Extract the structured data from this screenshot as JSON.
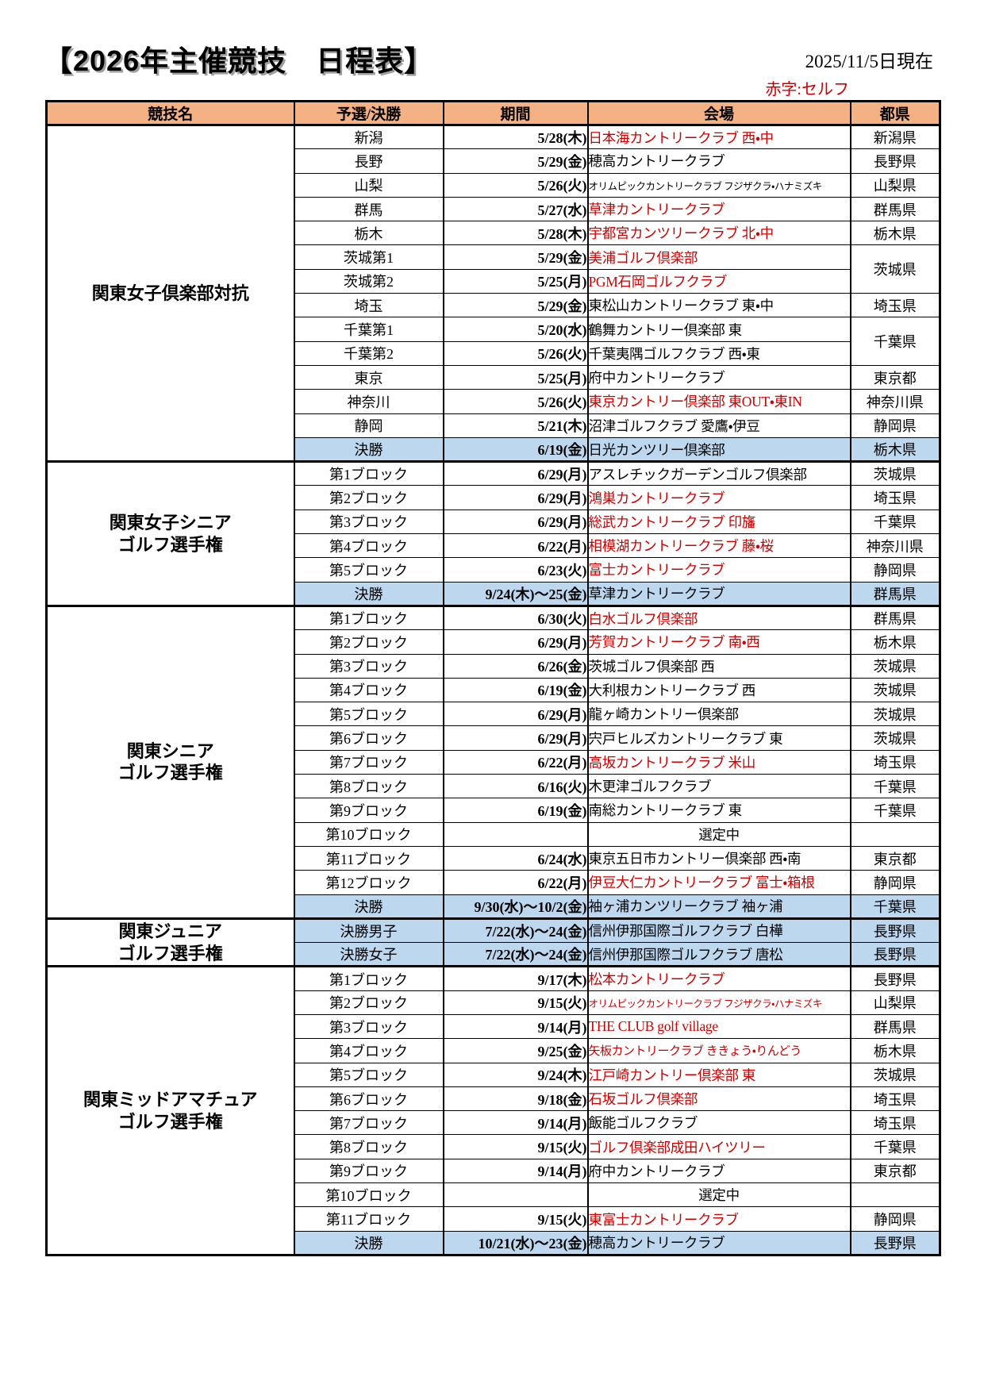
{
  "page": {
    "title": "【2026年主催競技　日程表】",
    "as_of": "2025/11/5日現在",
    "legend": "赤字:セルフ"
  },
  "colors": {
    "header_bg": "#F4B183",
    "final_row_bg": "#BDD7EE",
    "self_red_text": "#CC0000",
    "border": "#000000"
  },
  "table": {
    "headers": [
      "競技名",
      "予選/決勝",
      "期間",
      "会場",
      "都県"
    ],
    "sections": [
      {
        "name_lines": [
          "関東女子倶楽部対抗"
        ],
        "rows": [
          {
            "stage": "新潟",
            "date": "5/28(木)",
            "venue": "日本海カントリークラブ 西・中",
            "red": true,
            "pref": "新潟県"
          },
          {
            "stage": "長野",
            "date": "5/29(金)",
            "venue": "穂高カントリークラブ",
            "red": false,
            "pref": "長野県"
          },
          {
            "stage": "山梨",
            "date": "5/26(火)",
            "venue": "オリムピックカントリークラブ フジザクラ・ハナミズキ",
            "red": false,
            "size": "small",
            "pref": "山梨県"
          },
          {
            "stage": "群馬",
            "date": "5/27(水)",
            "venue": "草津カントリークラブ",
            "red": true,
            "pref": "群馬県"
          },
          {
            "stage": "栃木",
            "date": "5/28(木)",
            "venue": "宇都宮カンツリークラブ 北・中",
            "red": true,
            "pref": "栃木県"
          },
          {
            "stage": "茨城第1",
            "date": "5/29(金)",
            "venue": "美浦ゴルフ倶楽部",
            "red": true,
            "pref": "茨城県",
            "pref_span": 2
          },
          {
            "stage": "茨城第2",
            "date": "5/25(月)",
            "venue": "PGM石岡ゴルフクラブ",
            "red": true,
            "pref_span": 0
          },
          {
            "stage": "埼玉",
            "date": "5/29(金)",
            "venue": "東松山カントリークラブ 東・中",
            "red": false,
            "pref": "埼玉県"
          },
          {
            "stage": "千葉第1",
            "date": "5/20(水)",
            "venue": "鶴舞カントリー倶楽部 東",
            "red": false,
            "pref": "千葉県",
            "pref_span": 2
          },
          {
            "stage": "千葉第2",
            "date": "5/26(火)",
            "venue": "千葉夷隅ゴルフクラブ 西・東",
            "red": false,
            "pref_span": 0
          },
          {
            "stage": "東京",
            "date": "5/25(月)",
            "venue": "府中カントリークラブ",
            "red": false,
            "pref": "東京都"
          },
          {
            "stage": "神奈川",
            "date": "5/26(火)",
            "venue": "東京カントリー倶楽部 東OUT・東IN",
            "red": true,
            "pref": "神奈川県"
          },
          {
            "stage": "静岡",
            "date": "5/21(木)",
            "venue": "沼津ゴルフクラブ 愛鷹・伊豆",
            "red": false,
            "pref": "静岡県"
          },
          {
            "stage": "決勝",
            "date": "6/19(金)",
            "venue": "日光カンツリー倶楽部",
            "red": false,
            "final": true,
            "pref": "栃木県"
          }
        ]
      },
      {
        "name_lines": [
          "関東女子シニア",
          "ゴルフ選手権"
        ],
        "rows": [
          {
            "stage": "第1ブロック",
            "date": "6/29(月)",
            "venue": "アスレチックガーデンゴルフ倶楽部",
            "red": false,
            "pref": "茨城県"
          },
          {
            "stage": "第2ブロック",
            "date": "6/29(月)",
            "venue": "鴻巣カントリークラブ",
            "red": true,
            "pref": "埼玉県"
          },
          {
            "stage": "第3ブロック",
            "date": "6/29(月)",
            "venue": "総武カントリークラブ 印旛",
            "red": true,
            "pref": "千葉県"
          },
          {
            "stage": "第4ブロック",
            "date": "6/22(月)",
            "venue": "相模湖カントリークラブ 藤・桜",
            "red": true,
            "pref": "神奈川県"
          },
          {
            "stage": "第5ブロック",
            "date": "6/23(火)",
            "venue": "富士カントリークラブ",
            "red": true,
            "pref": "静岡県"
          },
          {
            "stage": "決勝",
            "date": "9/24(木)～25(金)",
            "venue": "草津カントリークラブ",
            "red": false,
            "final": true,
            "pref": "群馬県"
          }
        ]
      },
      {
        "name_lines": [
          "関東シニア",
          "ゴルフ選手権"
        ],
        "rows": [
          {
            "stage": "第1ブロック",
            "date": "6/30(火)",
            "venue": "白水ゴルフ倶楽部",
            "red": true,
            "pref": "群馬県"
          },
          {
            "stage": "第2ブロック",
            "date": "6/29(月)",
            "venue": "芳賀カントリークラブ 南・西",
            "red": true,
            "pref": "栃木県"
          },
          {
            "stage": "第3ブロック",
            "date": "6/26(金)",
            "venue": "茨城ゴルフ倶楽部 西",
            "red": false,
            "pref": "茨城県"
          },
          {
            "stage": "第4ブロック",
            "date": "6/19(金)",
            "venue": "大利根カントリークラブ 西",
            "red": false,
            "pref": "茨城県"
          },
          {
            "stage": "第5ブロック",
            "date": "6/29(月)",
            "venue": "龍ヶ崎カントリー倶楽部",
            "red": false,
            "pref": "茨城県"
          },
          {
            "stage": "第6ブロック",
            "date": "6/29(月)",
            "venue": "宍戸ヒルズカントリークラブ 東",
            "red": false,
            "pref": "茨城県"
          },
          {
            "stage": "第7ブロック",
            "date": "6/22(月)",
            "venue": "高坂カントリークラブ 米山",
            "red": true,
            "pref": "埼玉県"
          },
          {
            "stage": "第8ブロック",
            "date": "6/16(火)",
            "venue": "木更津ゴルフクラブ",
            "red": false,
            "pref": "千葉県"
          },
          {
            "stage": "第9ブロック",
            "date": "6/19(金)",
            "venue": "南総カントリークラブ 東",
            "red": false,
            "pref": "千葉県"
          },
          {
            "stage": "第10ブロック",
            "date": "",
            "venue": "選定中",
            "red": false,
            "center": true,
            "pref": ""
          },
          {
            "stage": "第11ブロック",
            "date": "6/24(水)",
            "venue": "東京五日市カントリー倶楽部 西・南",
            "red": false,
            "pref": "東京都"
          },
          {
            "stage": "第12ブロック",
            "date": "6/22(月)",
            "venue": "伊豆大仁カントリークラブ 富士・箱根",
            "red": true,
            "pref": "静岡県"
          },
          {
            "stage": "決勝",
            "date": "9/30(水)～10/2(金)",
            "venue": "袖ヶ浦カンツリークラブ 袖ヶ浦",
            "red": false,
            "final": true,
            "pref": "千葉県"
          }
        ]
      },
      {
        "name_lines": [
          "関東ジュニア",
          "ゴルフ選手権"
        ],
        "rows": [
          {
            "stage": "決勝男子",
            "date": "7/22(水)～24(金)",
            "venue": "信州伊那国際ゴルフクラブ 白樺",
            "red": false,
            "final": true,
            "pref": "長野県"
          },
          {
            "stage": "決勝女子",
            "date": "7/22(水)～24(金)",
            "venue": "信州伊那国際ゴルフクラブ 唐松",
            "red": false,
            "final": true,
            "pref": "長野県"
          }
        ]
      },
      {
        "name_lines": [
          "関東ミッドアマチュア",
          "ゴルフ選手権"
        ],
        "rows": [
          {
            "stage": "第1ブロック",
            "date": "9/17(木)",
            "venue": "松本カントリークラブ",
            "red": true,
            "pref": "長野県"
          },
          {
            "stage": "第2ブロック",
            "date": "9/15(火)",
            "venue": "オリムピックカントリークラブ フジザクラ・ハナミズキ",
            "red": true,
            "size": "small",
            "pref": "山梨県"
          },
          {
            "stage": "第3ブロック",
            "date": "9/14(月)",
            "venue": "THE CLUB golf village",
            "red": true,
            "pref": "群馬県"
          },
          {
            "stage": "第4ブロック",
            "date": "9/25(金)",
            "venue": "矢板カントリークラブ ききょう・りんどう",
            "red": true,
            "size": "mid",
            "pref": "栃木県"
          },
          {
            "stage": "第5ブロック",
            "date": "9/24(木)",
            "venue": "江戸崎カントリー倶楽部 東",
            "red": true,
            "pref": "茨城県"
          },
          {
            "stage": "第6ブロック",
            "date": "9/18(金)",
            "venue": "石坂ゴルフ倶楽部",
            "red": true,
            "pref": "埼玉県"
          },
          {
            "stage": "第7ブロック",
            "date": "9/14(月)",
            "venue": "飯能ゴルフクラブ",
            "red": false,
            "pref": "埼玉県"
          },
          {
            "stage": "第8ブロック",
            "date": "9/15(火)",
            "venue": "ゴルフ倶楽部成田ハイツリー",
            "red": true,
            "pref": "千葉県"
          },
          {
            "stage": "第9ブロック",
            "date": "9/14(月)",
            "venue": "府中カントリークラブ",
            "red": false,
            "pref": "東京都"
          },
          {
            "stage": "第10ブロック",
            "date": "",
            "venue": "選定中",
            "red": false,
            "center": true,
            "pref": ""
          },
          {
            "stage": "第11ブロック",
            "date": "9/15(火)",
            "venue": "東富士カントリークラブ",
            "red": true,
            "pref": "静岡県"
          },
          {
            "stage": "決勝",
            "date": "10/21(水)～23(金)",
            "venue": "穂高カントリークラブ",
            "red": false,
            "final": true,
            "pref": "長野県"
          }
        ]
      }
    ]
  }
}
